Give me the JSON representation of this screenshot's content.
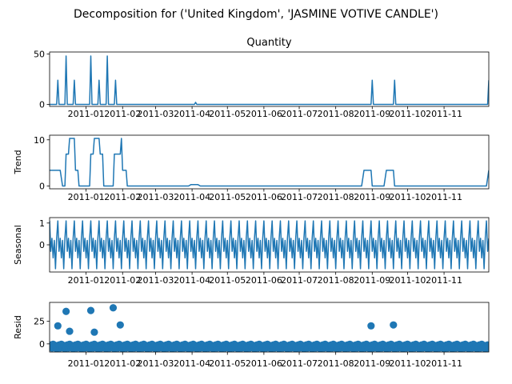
{
  "title": "Decomposition for ('United Kingdom', 'JASMINE VOTIVE CANDLE')",
  "x_tick_labels": [
    "2011-01",
    "2011-02",
    "2011-03",
    "2011-04",
    "2011-05",
    "2011-06",
    "2011-07",
    "2011-08",
    "2011-09",
    "2011-10",
    "2011-11"
  ],
  "chart_data": [
    {
      "type": "line",
      "panel": "observed",
      "title": "Quantity",
      "ylabel": "",
      "xlim": [
        "2010-12-01",
        "2011-12-09"
      ],
      "ylim": [
        -2,
        52
      ],
      "yticks": [
        0,
        50
      ],
      "x": [
        "2010-12-08",
        "2010-12-15",
        "2010-12-22",
        "2010-12-29",
        "2011-01-05",
        "2011-01-12",
        "2011-01-19",
        "2011-01-26",
        "2011-04-04",
        "2011-09-01",
        "2011-09-20",
        "2011-12-09"
      ],
      "values": [
        24,
        48,
        24,
        0,
        48,
        24,
        48,
        24,
        2,
        24,
        24,
        24
      ],
      "baseline": 0
    },
    {
      "type": "line",
      "panel": "trend",
      "title": "",
      "ylabel": "Trend",
      "xlim": [
        "2010-12-01",
        "2011-12-09"
      ],
      "ylim": [
        -0.6,
        11
      ],
      "yticks": [
        0,
        10
      ],
      "points": [
        [
          "2010-12-01",
          3.4
        ],
        [
          "2010-12-10",
          3.4
        ],
        [
          "2010-12-12",
          0
        ],
        [
          "2010-12-14",
          0
        ],
        [
          "2010-12-15",
          6.9
        ],
        [
          "2010-12-17",
          6.9
        ],
        [
          "2010-12-18",
          10.3
        ],
        [
          "2010-12-22",
          10.3
        ],
        [
          "2010-12-23",
          3.4
        ],
        [
          "2010-12-25",
          3.4
        ],
        [
          "2010-12-26",
          0
        ],
        [
          "2011-01-04",
          0
        ],
        [
          "2011-01-05",
          6.9
        ],
        [
          "2011-01-07",
          6.9
        ],
        [
          "2011-01-08",
          10.3
        ],
        [
          "2011-01-12",
          10.3
        ],
        [
          "2011-01-13",
          6.9
        ],
        [
          "2011-01-15",
          6.9
        ],
        [
          "2011-01-16",
          0
        ],
        [
          "2011-01-24",
          0
        ],
        [
          "2011-01-25",
          6.9
        ],
        [
          "2011-01-30",
          6.9
        ],
        [
          "2011-01-31",
          10.3
        ],
        [
          "2011-02-01",
          3.4
        ],
        [
          "2011-02-04",
          3.4
        ],
        [
          "2011-02-05",
          0
        ],
        [
          "2011-03-29",
          0
        ],
        [
          "2011-03-31",
          0.3
        ],
        [
          "2011-04-06",
          0.3
        ],
        [
          "2011-04-08",
          0
        ],
        [
          "2011-08-23",
          0
        ],
        [
          "2011-08-25",
          3.4
        ],
        [
          "2011-08-31",
          3.4
        ],
        [
          "2011-09-01",
          0
        ],
        [
          "2011-09-11",
          0
        ],
        [
          "2011-09-13",
          3.4
        ],
        [
          "2011-09-19",
          3.4
        ],
        [
          "2011-09-20",
          0
        ],
        [
          "2011-12-07",
          0
        ],
        [
          "2011-12-09",
          3.4
        ]
      ]
    },
    {
      "type": "line",
      "panel": "seasonal",
      "title": "",
      "ylabel": "Seasonal",
      "xlim": [
        "2010-12-01",
        "2011-12-09"
      ],
      "ylim": [
        -1.25,
        1.25
      ],
      "yticks": [
        0,
        1
      ],
      "period_days": 7,
      "pattern": [
        1.1,
        -0.3,
        0.3,
        -0.6,
        0.2,
        -1.1,
        0.3
      ]
    },
    {
      "type": "scatter",
      "panel": "resid",
      "title": "",
      "ylabel": "Resid",
      "xlim": [
        "2010-12-01",
        "2011-12-09"
      ],
      "ylim": [
        -9,
        46
      ],
      "yticks": [
        0,
        25
      ],
      "baseline": 0,
      "outliers": [
        [
          "2010-12-08",
          20
        ],
        [
          "2010-12-15",
          36
        ],
        [
          "2010-12-18",
          14
        ],
        [
          "2011-01-05",
          37
        ],
        [
          "2011-01-08",
          13
        ],
        [
          "2011-01-24",
          40
        ],
        [
          "2011-01-30",
          21
        ],
        [
          "2011-08-31",
          20
        ],
        [
          "2011-09-19",
          21
        ]
      ]
    }
  ]
}
